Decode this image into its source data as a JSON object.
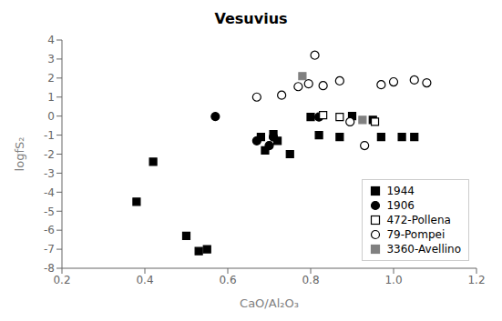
{
  "chart_data": {
    "type": "scatter",
    "title": "Vesuvius",
    "x_label": "CaO/Al₂O₃",
    "y_label": "logfS₂",
    "xlim": [
      0.2,
      1.2
    ],
    "ylim": [
      -8,
      4
    ],
    "xticks": [
      0.2,
      0.4,
      0.6,
      0.8,
      {
        "value": 1.0,
        "label": "1.0"
      },
      1.2
    ],
    "yticks": [
      -8,
      -7,
      -6,
      -5,
      -4,
      -3,
      -2,
      -1,
      0,
      1,
      2,
      3,
      4
    ],
    "grid": false,
    "legend": "lower right",
    "series": [
      {
        "name": "1944",
        "color": "#000000",
        "marker": "square",
        "x": [
          0.38,
          0.42,
          0.5,
          0.53,
          0.55,
          0.68,
          0.69,
          0.71,
          0.72,
          0.75,
          0.8,
          0.82,
          0.87,
          0.9,
          0.95,
          0.97,
          1.02,
          1.05
        ],
        "y": [
          -4.5,
          -2.4,
          -6.3,
          -7.1,
          -7.0,
          -1.1,
          -1.8,
          -0.95,
          -1.3,
          -2.0,
          -0.05,
          -1.0,
          -1.1,
          0.0,
          -0.2,
          -1.1,
          -1.1,
          -1.1
        ]
      },
      {
        "name": "1906",
        "color": "#000000",
        "marker": "circle",
        "x": [
          0.57,
          0.67,
          0.7,
          0.71,
          0.82
        ],
        "y": [
          -0.02,
          -1.3,
          -1.55,
          -1.1,
          -0.05
        ]
      },
      {
        "name": "472-Pollena",
        "color": "#000000",
        "marker": "square-open",
        "x": [
          0.83,
          0.87,
          0.955
        ],
        "y": [
          0.05,
          -0.05,
          -0.3
        ]
      },
      {
        "name": "79-Pompei",
        "color": "#000000",
        "marker": "circle-open",
        "x": [
          0.67,
          0.73,
          0.77,
          0.795,
          0.81,
          0.83,
          0.87,
          0.895,
          0.93,
          0.97,
          1.0,
          1.05,
          1.08
        ],
        "y": [
          1.0,
          1.1,
          1.55,
          1.7,
          3.2,
          1.6,
          1.85,
          -0.3,
          -1.55,
          1.65,
          1.8,
          1.9,
          1.75
        ]
      },
      {
        "name": "3360-Avellino",
        "color": "#808080",
        "marker": "square",
        "x": [
          0.78,
          0.925
        ],
        "y": [
          2.1,
          -0.2
        ]
      }
    ]
  }
}
